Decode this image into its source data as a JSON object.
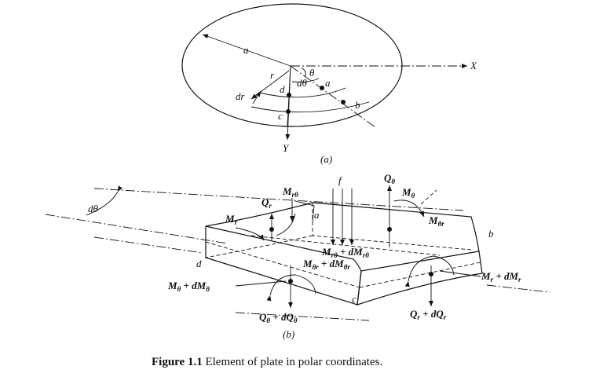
{
  "part_a": {
    "label": "(a)",
    "radius": "a",
    "r": "r",
    "dr": "dr",
    "dtheta": "dθ",
    "theta": "θ",
    "point_a": "a",
    "point_b": "b",
    "point_c": "c",
    "point_d": "d",
    "x_axis": "X",
    "y_axis": "Y"
  },
  "part_b": {
    "label": "(b)",
    "dtheta": "dθ",
    "load": "f",
    "Q_theta": [
      "Q",
      "θ"
    ],
    "Q_r": [
      "Q",
      "r"
    ],
    "M_r_theta": [
      "M",
      "rθ"
    ],
    "M_theta": [
      "M",
      "θ"
    ],
    "M_r": [
      "M",
      "r"
    ],
    "M_theta_r": [
      "M",
      "θr"
    ],
    "M_rtheta_plus": [
      "M",
      "rθ",
      " + dM",
      "rθ"
    ],
    "M_thetar_plus": [
      "M",
      "θr",
      " + dM",
      "θr"
    ],
    "M_theta_plus": [
      "M",
      "θ",
      " + dM",
      "θ"
    ],
    "M_r_plus": [
      "M",
      "r",
      " + dM",
      "r"
    ],
    "Q_theta_plus": [
      "Q",
      "θ",
      " + dQ",
      "θ"
    ],
    "Q_r_plus": [
      "Q",
      "r",
      " + dQ",
      "r"
    ],
    "corner_a": "a",
    "corner_b": "b",
    "corner_c": "c",
    "corner_d": "d"
  },
  "caption": {
    "bold": "Figure 1.1",
    "text": " Element of plate in polar coordinates."
  }
}
